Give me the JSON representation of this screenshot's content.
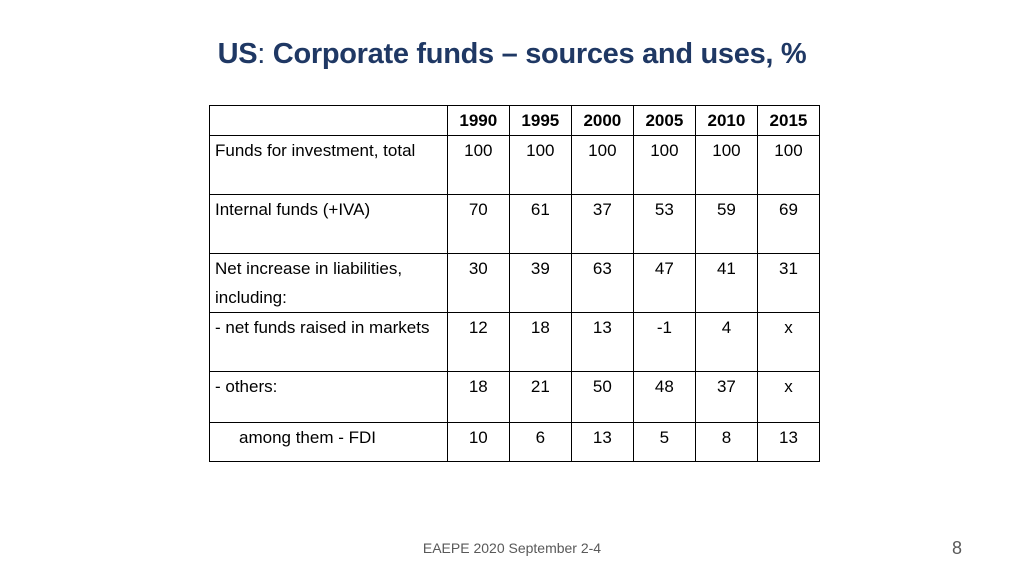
{
  "title": {
    "country": "US",
    "separator": ":",
    "text": "Corporate funds – sources and uses, %"
  },
  "table": {
    "corner": "",
    "years": [
      "1990",
      "1995",
      "2000",
      "2005",
      "2010",
      "2015"
    ],
    "rows": [
      {
        "label": "Funds for investment, total",
        "values": [
          "100",
          "100",
          "100",
          "100",
          "100",
          "100"
        ]
      },
      {
        "label": "Internal funds (+IVA)",
        "values": [
          "70",
          "61",
          "37",
          "53",
          "59",
          "69"
        ]
      },
      {
        "label": "Net increase in liabilities, including:",
        "values": [
          "30",
          "39",
          "63",
          "47",
          "41",
          "31"
        ]
      },
      {
        "label": " - net funds raised in markets",
        "values": [
          "12",
          "18",
          "13",
          "-1",
          "4",
          "x"
        ]
      },
      {
        "label": " - others:",
        "values": [
          "18",
          "21",
          "50",
          "48",
          "37",
          "x"
        ]
      },
      {
        "label": "among them - FDI",
        "values": [
          "10",
          "6",
          "13",
          "5",
          "8",
          "13"
        ]
      }
    ]
  },
  "footer": {
    "text": "EAEPE 2020 September 2-4",
    "page_number": "8"
  }
}
